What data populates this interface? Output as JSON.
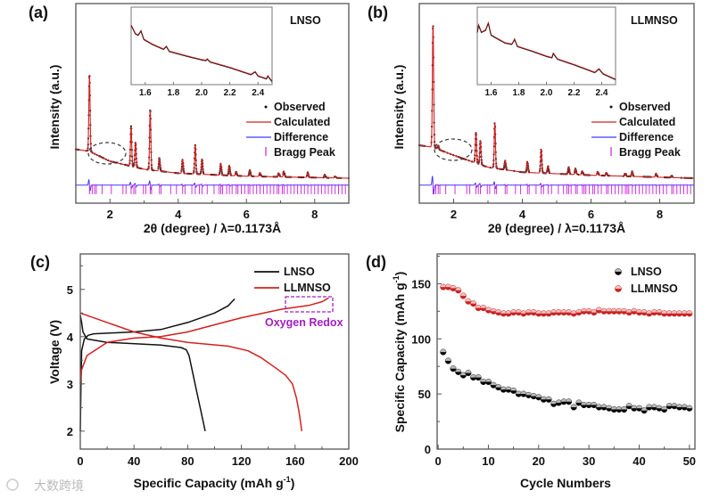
{
  "figure": {
    "watermark": "大数跨境",
    "colors": {
      "observed": "#111111",
      "calculated": "#d42020",
      "difference": "#3a3aff",
      "bragg": "#d030e0",
      "lnso": "#111111",
      "llmnso": "#d42020",
      "oxygen_redox": "#a020c0"
    }
  },
  "chart_data": [
    {
      "type": "line",
      "panel_label": "(a)",
      "title": "LNSO",
      "xlabel": "2θ (degree) / λ=0.1173Å",
      "ylabel": "Intensity (a.u.)",
      "xlim": [
        1,
        9
      ],
      "ylim": [
        0,
        1
      ],
      "xticks": [
        "2",
        "4",
        "6",
        "8"
      ],
      "legend": [
        "Observed",
        "Calculated",
        "Difference",
        "Bragg Peak"
      ],
      "legend_position": "right",
      "background": [
        [
          1,
          0.27
        ],
        [
          1.4,
          0.26
        ],
        [
          2,
          0.21
        ],
        [
          3,
          0.17
        ],
        [
          4,
          0.15
        ],
        [
          6,
          0.135
        ],
        [
          9,
          0.125
        ]
      ],
      "peaks": [
        [
          1.4,
          0.38
        ],
        [
          2.62,
          0.2
        ],
        [
          2.75,
          0.125
        ],
        [
          3.18,
          0.3
        ],
        [
          3.45,
          0.065
        ],
        [
          4.13,
          0.07
        ],
        [
          4.5,
          0.145
        ],
        [
          4.7,
          0.075
        ],
        [
          5.25,
          0.06
        ],
        [
          5.5,
          0.05
        ],
        [
          5.7,
          0.02
        ],
        [
          6.1,
          0.03
        ],
        [
          6.4,
          0.02
        ],
        [
          6.95,
          0.02
        ],
        [
          7.1,
          0.03
        ],
        [
          7.8,
          0.025
        ],
        [
          8.3,
          0.015
        ],
        [
          8.6,
          0.01
        ]
      ],
      "bragg_peaks": [
        1.4,
        1.48,
        1.55,
        1.6,
        1.77,
        2.04,
        2.38,
        2.47,
        2.62,
        2.7,
        2.75,
        2.98,
        3.05,
        3.18,
        3.22,
        3.45,
        3.5,
        3.78,
        3.95,
        4.13,
        4.2,
        4.4,
        4.5,
        4.62,
        4.7,
        4.85,
        5.05,
        5.2,
        5.25,
        5.3,
        5.42,
        5.5,
        5.58,
        5.7,
        5.75,
        5.85,
        5.95,
        6.05,
        6.1,
        6.2,
        6.3,
        6.4,
        6.5,
        6.6,
        6.7,
        6.8,
        6.9,
        6.95,
        7.05,
        7.1,
        7.2,
        7.3,
        7.4,
        7.5,
        7.6,
        7.7,
        7.8,
        7.9,
        8.0,
        8.1,
        8.2,
        8.3,
        8.4,
        8.5,
        8.6,
        8.7,
        8.8,
        8.9
      ],
      "inset": {
        "xlim": [
          1.5,
          2.5
        ],
        "xticks": [
          "1.6",
          "1.8",
          "2.0",
          "2.2",
          "2.4"
        ],
        "curve": [
          [
            1.5,
            0.82
          ],
          [
            1.53,
            0.7
          ],
          [
            1.55,
            0.68
          ],
          [
            1.57,
            0.74
          ],
          [
            1.59,
            0.62
          ],
          [
            1.65,
            0.55
          ],
          [
            1.73,
            0.48
          ],
          [
            1.75,
            0.52
          ],
          [
            1.77,
            0.45
          ],
          [
            1.9,
            0.38
          ],
          [
            2.0,
            0.33
          ],
          [
            2.03,
            0.32
          ],
          [
            2.04,
            0.34
          ],
          [
            2.06,
            0.3
          ],
          [
            2.2,
            0.22
          ],
          [
            2.35,
            0.12
          ],
          [
            2.38,
            0.16
          ],
          [
            2.4,
            0.1
          ],
          [
            2.46,
            0.06
          ],
          [
            2.47,
            0.1
          ],
          [
            2.5,
            0.02
          ]
        ]
      }
    },
    {
      "type": "line",
      "panel_label": "(b)",
      "title": "LLMNSO",
      "xlabel": "2θ (degree) / λ=0.1173Å",
      "ylabel": "Intensity (a.u.)",
      "xlim": [
        1,
        9
      ],
      "ylim": [
        0,
        1
      ],
      "xticks": [
        "2",
        "4",
        "6",
        "8"
      ],
      "legend": [
        "Observed",
        "Calculated",
        "Difference",
        "Bragg Peak"
      ],
      "legend_position": "right",
      "background": [
        [
          1,
          0.29
        ],
        [
          1.4,
          0.28
        ],
        [
          2,
          0.24
        ],
        [
          3,
          0.18
        ],
        [
          4,
          0.155
        ],
        [
          6,
          0.14
        ],
        [
          9,
          0.125
        ]
      ],
      "peaks": [
        [
          1.4,
          0.61
        ],
        [
          1.55,
          0.02
        ],
        [
          2.65,
          0.15
        ],
        [
          2.78,
          0.12
        ],
        [
          3.2,
          0.23
        ],
        [
          3.5,
          0.045
        ],
        [
          4.15,
          0.055
        ],
        [
          4.55,
          0.12
        ],
        [
          4.75,
          0.035
        ],
        [
          5.35,
          0.035
        ],
        [
          5.55,
          0.03
        ],
        [
          5.75,
          0.02
        ],
        [
          6.2,
          0.02
        ],
        [
          6.45,
          0.015
        ],
        [
          7.0,
          0.015
        ],
        [
          7.2,
          0.025
        ],
        [
          7.9,
          0.02
        ],
        [
          8.35,
          0.01
        ]
      ],
      "bragg_peaks": [
        1.4,
        1.48,
        1.55,
        1.6,
        1.77,
        2.04,
        2.38,
        2.47,
        2.65,
        2.72,
        2.78,
        2.98,
        3.05,
        3.2,
        3.25,
        3.5,
        3.55,
        3.8,
        3.95,
        4.15,
        4.2,
        4.4,
        4.55,
        4.62,
        4.75,
        4.85,
        5.05,
        5.2,
        5.3,
        5.35,
        5.42,
        5.55,
        5.6,
        5.75,
        5.8,
        5.85,
        5.95,
        6.05,
        6.1,
        6.2,
        6.3,
        6.45,
        6.5,
        6.6,
        6.7,
        6.8,
        6.9,
        7.0,
        7.05,
        7.1,
        7.2,
        7.3,
        7.4,
        7.5,
        7.6,
        7.7,
        7.8,
        7.9,
        8.0,
        8.1,
        8.2,
        8.35,
        8.4,
        8.5,
        8.6,
        8.7,
        8.8,
        8.9
      ],
      "inset": {
        "xlim": [
          1.5,
          2.5
        ],
        "xticks": [
          "1.6",
          "1.8",
          "2.0",
          "2.2",
          "2.4"
        ],
        "curve": [
          [
            1.5,
            0.72
          ],
          [
            1.51,
            0.82
          ],
          [
            1.53,
            0.72
          ],
          [
            1.56,
            0.75
          ],
          [
            1.58,
            0.85
          ],
          [
            1.6,
            0.68
          ],
          [
            1.7,
            0.57
          ],
          [
            1.75,
            0.55
          ],
          [
            1.77,
            0.62
          ],
          [
            1.79,
            0.52
          ],
          [
            1.9,
            0.45
          ],
          [
            2.0,
            0.38
          ],
          [
            2.04,
            0.36
          ],
          [
            2.05,
            0.42
          ],
          [
            2.08,
            0.34
          ],
          [
            2.2,
            0.26
          ],
          [
            2.35,
            0.15
          ],
          [
            2.38,
            0.2
          ],
          [
            2.41,
            0.13
          ],
          [
            2.5,
            0.05
          ]
        ]
      }
    },
    {
      "type": "line",
      "panel_label": "(c)",
      "xlabel": "Specific Capacity (mAh g",
      "xlabel_sup": "-1",
      "xlabel_end": ")",
      "ylabel": "Voltage (V)",
      "xlim": [
        0,
        200
      ],
      "ylim": [
        1.62,
        5.75
      ],
      "xticks": [
        0,
        40,
        80,
        120,
        160,
        200
      ],
      "yticks": [
        2,
        3,
        4,
        5
      ],
      "legend_position": "top-right",
      "annotation": "Oxygen Redox",
      "series": [
        {
          "name": "LNSO",
          "charge": [
            [
              0,
              2.0
            ],
            [
              0.5,
              3.0
            ],
            [
              1,
              3.7
            ],
            [
              3,
              3.95
            ],
            [
              6,
              4.03
            ],
            [
              10,
              4.06
            ],
            [
              40,
              4.1
            ],
            [
              60,
              4.15
            ],
            [
              80,
              4.3
            ],
            [
              100,
              4.5
            ],
            [
              110,
              4.65
            ],
            [
              115,
              4.8
            ]
          ],
          "discharge": [
            [
              0,
              4.45
            ],
            [
              1,
              4.3
            ],
            [
              2,
              4.1
            ],
            [
              5,
              3.95
            ],
            [
              20,
              3.88
            ],
            [
              60,
              3.82
            ],
            [
              75,
              3.77
            ],
            [
              79,
              3.72
            ],
            [
              81,
              3.6
            ],
            [
              84,
              3.2
            ],
            [
              87,
              2.8
            ],
            [
              90,
              2.4
            ],
            [
              93,
              2.0
            ]
          ]
        },
        {
          "name": "LLMNSO",
          "charge": [
            [
              0,
              3.0
            ],
            [
              1,
              3.3
            ],
            [
              5,
              3.6
            ],
            [
              20,
              3.88
            ],
            [
              40,
              3.97
            ],
            [
              60,
              4.0
            ],
            [
              80,
              4.1
            ],
            [
              100,
              4.25
            ],
            [
              120,
              4.4
            ],
            [
              150,
              4.58
            ],
            [
              170,
              4.66
            ],
            [
              180,
              4.74
            ],
            [
              185,
              4.82
            ]
          ],
          "discharge": [
            [
              0,
              4.5
            ],
            [
              20,
              4.3
            ],
            [
              40,
              4.1
            ],
            [
              60,
              3.97
            ],
            [
              80,
              3.88
            ],
            [
              110,
              3.8
            ],
            [
              125,
              3.7
            ],
            [
              135,
              3.55
            ],
            [
              145,
              3.35
            ],
            [
              153,
              3.18
            ],
            [
              158,
              3.0
            ],
            [
              161,
              2.7
            ],
            [
              163,
              2.4
            ],
            [
              165,
              2.0
            ]
          ]
        }
      ]
    },
    {
      "type": "scatter",
      "panel_label": "(d)",
      "xlabel": "Cycle Numbers",
      "ylabel": "Specific Capacity (mAh g",
      "ylabel_sup": "-1",
      "ylabel_end": ")",
      "xlim": [
        -0.2,
        51.1
      ],
      "ylim": [
        0,
        177
      ],
      "xticks": [
        0,
        10,
        20,
        30,
        40,
        50
      ],
      "yticks": [
        0,
        50,
        100,
        150
      ],
      "legend_position": "top-right",
      "x": [
        1,
        2,
        3,
        4,
        5,
        6,
        7,
        8,
        9,
        10,
        11,
        12,
        13,
        14,
        15,
        16,
        17,
        18,
        19,
        20,
        21,
        22,
        23,
        24,
        25,
        26,
        27,
        28,
        29,
        30,
        31,
        32,
        33,
        34,
        35,
        36,
        37,
        38,
        39,
        40,
        41,
        42,
        43,
        44,
        45,
        46,
        47,
        48,
        49,
        50
      ],
      "series": [
        {
          "name": "LNSO",
          "values": [
            88,
            80,
            73,
            70,
            67,
            69,
            65,
            65,
            61,
            61,
            58,
            56,
            54,
            54,
            53,
            50,
            50,
            49,
            48,
            47,
            45,
            45,
            41,
            42,
            43,
            43,
            38,
            42,
            40,
            40,
            40,
            38,
            38,
            37,
            36,
            36,
            36,
            39,
            37,
            37,
            35,
            38,
            38,
            37,
            36,
            39,
            39,
            38,
            38,
            37
          ]
        },
        {
          "name": "LLMNSO",
          "values": [
            147,
            147,
            146,
            144,
            139,
            134,
            132,
            128,
            128,
            126,
            125,
            124,
            123,
            123,
            124,
            124,
            123,
            124,
            124,
            123,
            123,
            123,
            124,
            124,
            124,
            124,
            123,
            124,
            125,
            125,
            124,
            126,
            125,
            125,
            125,
            125,
            125,
            124,
            125,
            124,
            124,
            123,
            124,
            124,
            123,
            123,
            123,
            123,
            123,
            123
          ]
        }
      ]
    }
  ]
}
